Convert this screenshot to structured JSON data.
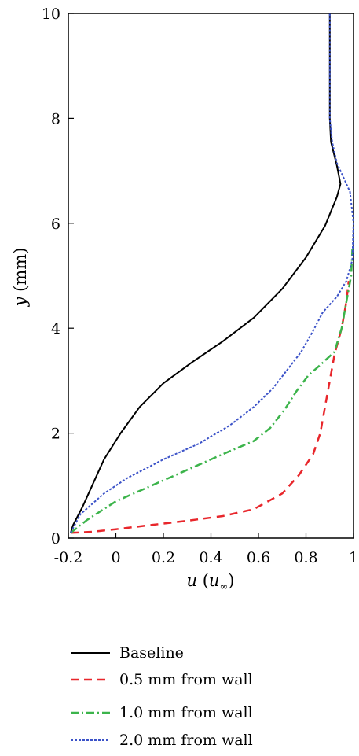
{
  "chart_data": {
    "type": "line",
    "xlabel": {
      "var": "u",
      "open": "(",
      "sym": "u",
      "sub": "∞",
      "close": ")"
    },
    "ylabel": {
      "var": "y",
      "unit": "(mm)"
    },
    "xlim": [
      -0.2,
      1
    ],
    "ylim": [
      0,
      10
    ],
    "x_ticks": [
      "-0.2",
      "0",
      "0.2",
      "0.4",
      "0.6",
      "0.8",
      "1"
    ],
    "x_tick_values": [
      -0.2,
      0,
      0.2,
      0.4,
      0.6,
      0.8,
      1
    ],
    "y_ticks": [
      "0",
      "2",
      "4",
      "6",
      "8",
      "10"
    ],
    "y_tick_values": [
      0,
      2,
      4,
      6,
      8,
      10
    ],
    "grid": false,
    "legend_position": "bottom",
    "series": [
      {
        "name": "Baseline",
        "color": "#000000",
        "dash": "solid",
        "points": [
          [
            -0.19,
            0.1
          ],
          [
            -0.18,
            0.25
          ],
          [
            -0.14,
            0.6
          ],
          [
            -0.1,
            1.0
          ],
          [
            -0.05,
            1.5
          ],
          [
            0.02,
            2.0
          ],
          [
            0.1,
            2.5
          ],
          [
            0.2,
            2.95
          ],
          [
            0.32,
            3.35
          ],
          [
            0.45,
            3.75
          ],
          [
            0.58,
            4.2
          ],
          [
            0.7,
            4.75
          ],
          [
            0.8,
            5.35
          ],
          [
            0.88,
            5.95
          ],
          [
            0.93,
            6.5
          ],
          [
            0.945,
            6.75
          ],
          [
            0.93,
            7.1
          ],
          [
            0.905,
            7.55
          ],
          [
            0.9,
            8
          ],
          [
            0.9,
            9
          ],
          [
            0.9,
            10
          ]
        ]
      },
      {
        "name": "0.5 mm from wall",
        "color": "#e8262b",
        "dash": "dash",
        "points": [
          [
            -0.19,
            0.1
          ],
          [
            -0.1,
            0.12
          ],
          [
            0.0,
            0.17
          ],
          [
            0.15,
            0.25
          ],
          [
            0.3,
            0.33
          ],
          [
            0.45,
            0.42
          ],
          [
            0.58,
            0.55
          ],
          [
            0.7,
            0.85
          ],
          [
            0.77,
            1.2
          ],
          [
            0.83,
            1.6
          ],
          [
            0.86,
            2.0
          ],
          [
            0.88,
            2.5
          ],
          [
            0.9,
            3.0
          ],
          [
            0.92,
            3.5
          ],
          [
            0.95,
            4.0
          ],
          [
            0.97,
            4.5
          ],
          [
            0.98,
            4.9
          ]
        ]
      },
      {
        "name": "1.0 mm from wall",
        "color": "#3cb44b",
        "dash": "dashdot",
        "points": [
          [
            -0.19,
            0.1
          ],
          [
            -0.12,
            0.35
          ],
          [
            0.0,
            0.7
          ],
          [
            0.15,
            1.0
          ],
          [
            0.3,
            1.3
          ],
          [
            0.45,
            1.6
          ],
          [
            0.58,
            1.85
          ],
          [
            0.65,
            2.1
          ],
          [
            0.71,
            2.45
          ],
          [
            0.76,
            2.8
          ],
          [
            0.81,
            3.1
          ],
          [
            0.86,
            3.3
          ],
          [
            0.92,
            3.55
          ],
          [
            0.95,
            4.0
          ],
          [
            0.97,
            4.5
          ],
          [
            0.99,
            5.0
          ],
          [
            0.995,
            5.5
          ]
        ]
      },
      {
        "name": "2.0 mm from wall",
        "color": "#3b52c8",
        "dash": "dot",
        "points": [
          [
            -0.19,
            0.1
          ],
          [
            -0.15,
            0.45
          ],
          [
            -0.05,
            0.85
          ],
          [
            0.05,
            1.15
          ],
          [
            0.2,
            1.5
          ],
          [
            0.35,
            1.8
          ],
          [
            0.48,
            2.15
          ],
          [
            0.58,
            2.5
          ],
          [
            0.66,
            2.85
          ],
          [
            0.72,
            3.2
          ],
          [
            0.78,
            3.55
          ],
          [
            0.83,
            3.95
          ],
          [
            0.87,
            4.3
          ],
          [
            0.93,
            4.6
          ],
          [
            0.97,
            4.9
          ],
          [
            0.995,
            5.3
          ],
          [
            1.0,
            6.0
          ],
          [
            0.985,
            6.6
          ],
          [
            0.93,
            7.15
          ],
          [
            0.91,
            7.55
          ],
          [
            0.9,
            8
          ],
          [
            0.9,
            9
          ],
          [
            0.9,
            10
          ]
        ]
      }
    ]
  }
}
